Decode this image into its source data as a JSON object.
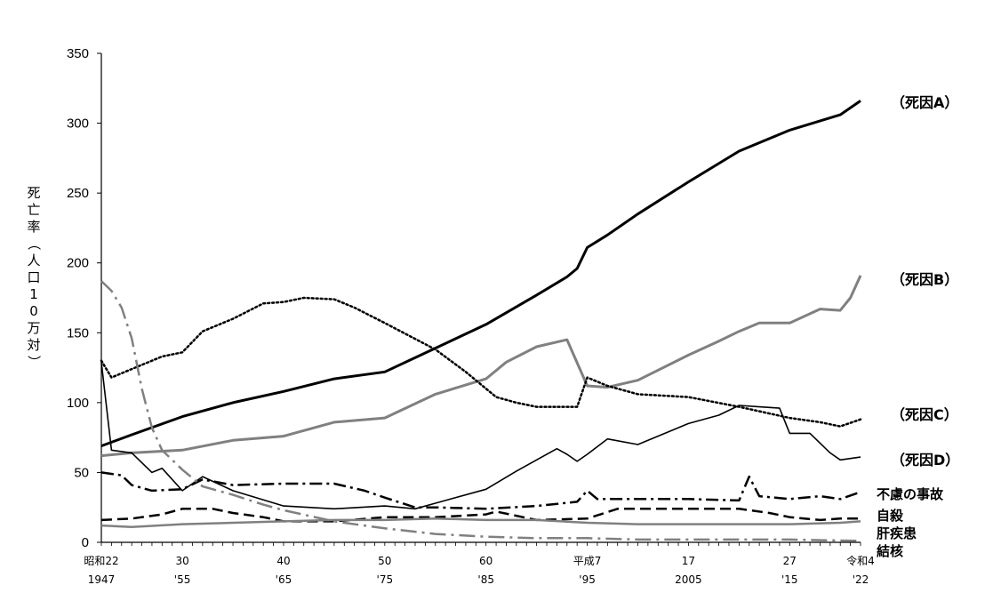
{
  "chart_data": {
    "type": "line",
    "ylabel": "死亡率（人口10万対）",
    "ylim": [
      0,
      350
    ],
    "yticks": [
      0,
      50,
      100,
      150,
      200,
      250,
      300,
      350
    ],
    "xlim": [
      1947,
      2022
    ],
    "xticks": [
      {
        "x": 1947,
        "label1": "昭和22",
        "label2": "1947"
      },
      {
        "x": 1955,
        "label1": "30",
        "label2": "'55"
      },
      {
        "x": 1965,
        "label1": "40",
        "label2": "'65"
      },
      {
        "x": 1975,
        "label1": "50",
        "label2": "'75"
      },
      {
        "x": 1985,
        "label1": "60",
        "label2": "'85"
      },
      {
        "x": 1995,
        "label1": "平成7",
        "label2": "'95"
      },
      {
        "x": 2005,
        "label1": "17",
        "label2": "2005"
      },
      {
        "x": 2015,
        "label1": "27",
        "label2": "'15"
      },
      {
        "x": 2022,
        "label1": "令和4",
        "label2": "'22"
      }
    ],
    "grid": false,
    "series": [
      {
        "name": "（死因A）",
        "color": "#000000",
        "style": "solid",
        "width": 3,
        "points": [
          [
            1947,
            69
          ],
          [
            1950,
            77
          ],
          [
            1955,
            90
          ],
          [
            1960,
            100
          ],
          [
            1965,
            108
          ],
          [
            1970,
            117
          ],
          [
            1975,
            122
          ],
          [
            1980,
            139
          ],
          [
            1985,
            156
          ],
          [
            1990,
            177
          ],
          [
            1993,
            190
          ],
          [
            1994,
            196
          ],
          [
            1995,
            211
          ],
          [
            1997,
            220
          ],
          [
            2000,
            235
          ],
          [
            2005,
            258
          ],
          [
            2010,
            280
          ],
          [
            2015,
            295
          ],
          [
            2020,
            306
          ],
          [
            2022,
            316
          ]
        ]
      },
      {
        "name": "（死因B）",
        "color": "#808080",
        "style": "solid",
        "width": 3,
        "points": [
          [
            1947,
            62
          ],
          [
            1950,
            64
          ],
          [
            1955,
            66
          ],
          [
            1960,
            73
          ],
          [
            1965,
            76
          ],
          [
            1970,
            86
          ],
          [
            1975,
            89
          ],
          [
            1980,
            106
          ],
          [
            1985,
            117
          ],
          [
            1987,
            129
          ],
          [
            1990,
            140
          ],
          [
            1993,
            145
          ],
          [
            1995,
            112
          ],
          [
            1997,
            111
          ],
          [
            2000,
            116
          ],
          [
            2005,
            134
          ],
          [
            2008,
            144
          ],
          [
            2010,
            151
          ],
          [
            2012,
            157
          ],
          [
            2015,
            157
          ],
          [
            2018,
            167
          ],
          [
            2020,
            166
          ],
          [
            2021,
            175
          ],
          [
            2022,
            191
          ]
        ]
      },
      {
        "name": "（死因C）",
        "color": "#000000",
        "style": "dotted",
        "width": 2.5,
        "points": [
          [
            1947,
            130
          ],
          [
            1948,
            118
          ],
          [
            1950,
            124
          ],
          [
            1953,
            133
          ],
          [
            1955,
            136
          ],
          [
            1957,
            151
          ],
          [
            1960,
            160
          ],
          [
            1963,
            171
          ],
          [
            1965,
            172
          ],
          [
            1967,
            175
          ],
          [
            1970,
            174
          ],
          [
            1972,
            168
          ],
          [
            1975,
            157
          ],
          [
            1980,
            138
          ],
          [
            1983,
            122
          ],
          [
            1986,
            104
          ],
          [
            1988,
            100
          ],
          [
            1990,
            97
          ],
          [
            1994,
            97
          ],
          [
            1995,
            118
          ],
          [
            1997,
            112
          ],
          [
            2000,
            106
          ],
          [
            2005,
            104
          ],
          [
            2010,
            97
          ],
          [
            2015,
            89
          ],
          [
            2018,
            86
          ],
          [
            2020,
            83
          ],
          [
            2022,
            88
          ]
        ]
      },
      {
        "name": "（死因D）",
        "color": "#000000",
        "style": "solid",
        "width": 1.6,
        "points": [
          [
            1947,
            129
          ],
          [
            1948,
            66
          ],
          [
            1950,
            64
          ],
          [
            1952,
            50
          ],
          [
            1953,
            53
          ],
          [
            1955,
            37
          ],
          [
            1957,
            47
          ],
          [
            1960,
            37
          ],
          [
            1965,
            26
          ],
          [
            1970,
            24
          ],
          [
            1975,
            26
          ],
          [
            1978,
            24
          ],
          [
            1980,
            28
          ],
          [
            1985,
            38
          ],
          [
            1988,
            51
          ],
          [
            1990,
            59
          ],
          [
            1992,
            67
          ],
          [
            1993,
            63
          ],
          [
            1994,
            58
          ],
          [
            1995,
            63
          ],
          [
            1997,
            74
          ],
          [
            2000,
            70
          ],
          [
            2005,
            85
          ],
          [
            2008,
            91
          ],
          [
            2010,
            98
          ],
          [
            2012,
            97
          ],
          [
            2014,
            96
          ],
          [
            2015,
            78
          ],
          [
            2017,
            78
          ],
          [
            2019,
            64
          ],
          [
            2020,
            59
          ],
          [
            2022,
            61
          ]
        ]
      },
      {
        "name": "不慮の事故",
        "color": "#000000",
        "style": "dashdot",
        "width": 2.5,
        "points": [
          [
            1947,
            50
          ],
          [
            1949,
            48
          ],
          [
            1950,
            41
          ],
          [
            1952,
            37
          ],
          [
            1955,
            38
          ],
          [
            1957,
            45
          ],
          [
            1960,
            41
          ],
          [
            1965,
            42
          ],
          [
            1970,
            42
          ],
          [
            1973,
            37
          ],
          [
            1975,
            32
          ],
          [
            1978,
            25
          ],
          [
            1980,
            25
          ],
          [
            1985,
            24
          ],
          [
            1990,
            26
          ],
          [
            1994,
            29
          ],
          [
            1995,
            37
          ],
          [
            1996,
            31
          ],
          [
            2000,
            31
          ],
          [
            2005,
            31
          ],
          [
            2010,
            30
          ],
          [
            2011,
            47
          ],
          [
            2012,
            33
          ],
          [
            2015,
            31
          ],
          [
            2018,
            33
          ],
          [
            2020,
            31
          ],
          [
            2022,
            36
          ]
        ]
      },
      {
        "name": "自殺",
        "color": "#000000",
        "style": "dashed",
        "width": 2.5,
        "points": [
          [
            1947,
            16
          ],
          [
            1950,
            17
          ],
          [
            1953,
            20
          ],
          [
            1955,
            24
          ],
          [
            1958,
            24
          ],
          [
            1960,
            21
          ],
          [
            1963,
            18
          ],
          [
            1965,
            15
          ],
          [
            1970,
            15
          ],
          [
            1975,
            18
          ],
          [
            1980,
            18
          ],
          [
            1985,
            20
          ],
          [
            1986,
            22
          ],
          [
            1990,
            16
          ],
          [
            1995,
            17
          ],
          [
            1998,
            24
          ],
          [
            2000,
            24
          ],
          [
            2005,
            24
          ],
          [
            2010,
            24
          ],
          [
            2013,
            21
          ],
          [
            2015,
            18
          ],
          [
            2018,
            16
          ],
          [
            2020,
            17
          ],
          [
            2022,
            17
          ]
        ]
      },
      {
        "name": "肝疾患",
        "color": "#808080",
        "style": "solid",
        "width": 2.5,
        "points": [
          [
            1947,
            12
          ],
          [
            1950,
            11
          ],
          [
            1955,
            13
          ],
          [
            1960,
            14
          ],
          [
            1965,
            15
          ],
          [
            1970,
            16
          ],
          [
            1975,
            16
          ],
          [
            1980,
            17
          ],
          [
            1985,
            16
          ],
          [
            1990,
            16
          ],
          [
            1995,
            14
          ],
          [
            2000,
            13
          ],
          [
            2005,
            13
          ],
          [
            2010,
            13
          ],
          [
            2015,
            13
          ],
          [
            2020,
            14
          ],
          [
            2022,
            15
          ]
        ]
      },
      {
        "name": "結核",
        "color": "#808080",
        "style": "longdashdot",
        "width": 2.5,
        "points": [
          [
            1947,
            187
          ],
          [
            1948,
            180
          ],
          [
            1949,
            168
          ],
          [
            1950,
            146
          ],
          [
            1951,
            110
          ],
          [
            1952,
            82
          ],
          [
            1953,
            66
          ],
          [
            1955,
            52
          ],
          [
            1957,
            40
          ],
          [
            1960,
            34
          ],
          [
            1963,
            27
          ],
          [
            1965,
            23
          ],
          [
            1970,
            15
          ],
          [
            1975,
            10
          ],
          [
            1980,
            6
          ],
          [
            1985,
            4
          ],
          [
            1990,
            3
          ],
          [
            1995,
            3
          ],
          [
            2000,
            2
          ],
          [
            2005,
            2
          ],
          [
            2010,
            2
          ],
          [
            2015,
            2
          ],
          [
            2022,
            1
          ]
        ]
      }
    ]
  }
}
